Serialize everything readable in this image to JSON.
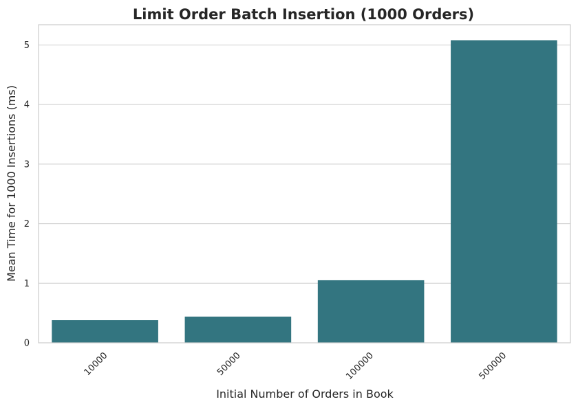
{
  "chart_data": {
    "type": "bar",
    "title": "Limit Order Batch Insertion (1000 Orders)",
    "xlabel": "Initial Number of Orders in Book",
    "ylabel": "Mean Time for 1000 Insertions (ms)",
    "categories": [
      "10000",
      "50000",
      "100000",
      "500000"
    ],
    "values": [
      0.38,
      0.44,
      1.05,
      5.08
    ],
    "ylim": [
      0,
      5.34
    ],
    "yticks": [
      0,
      1,
      2,
      3,
      4,
      5
    ],
    "grid": "horizontal",
    "bar_color": "#337580",
    "xtick_rotation": -45
  }
}
